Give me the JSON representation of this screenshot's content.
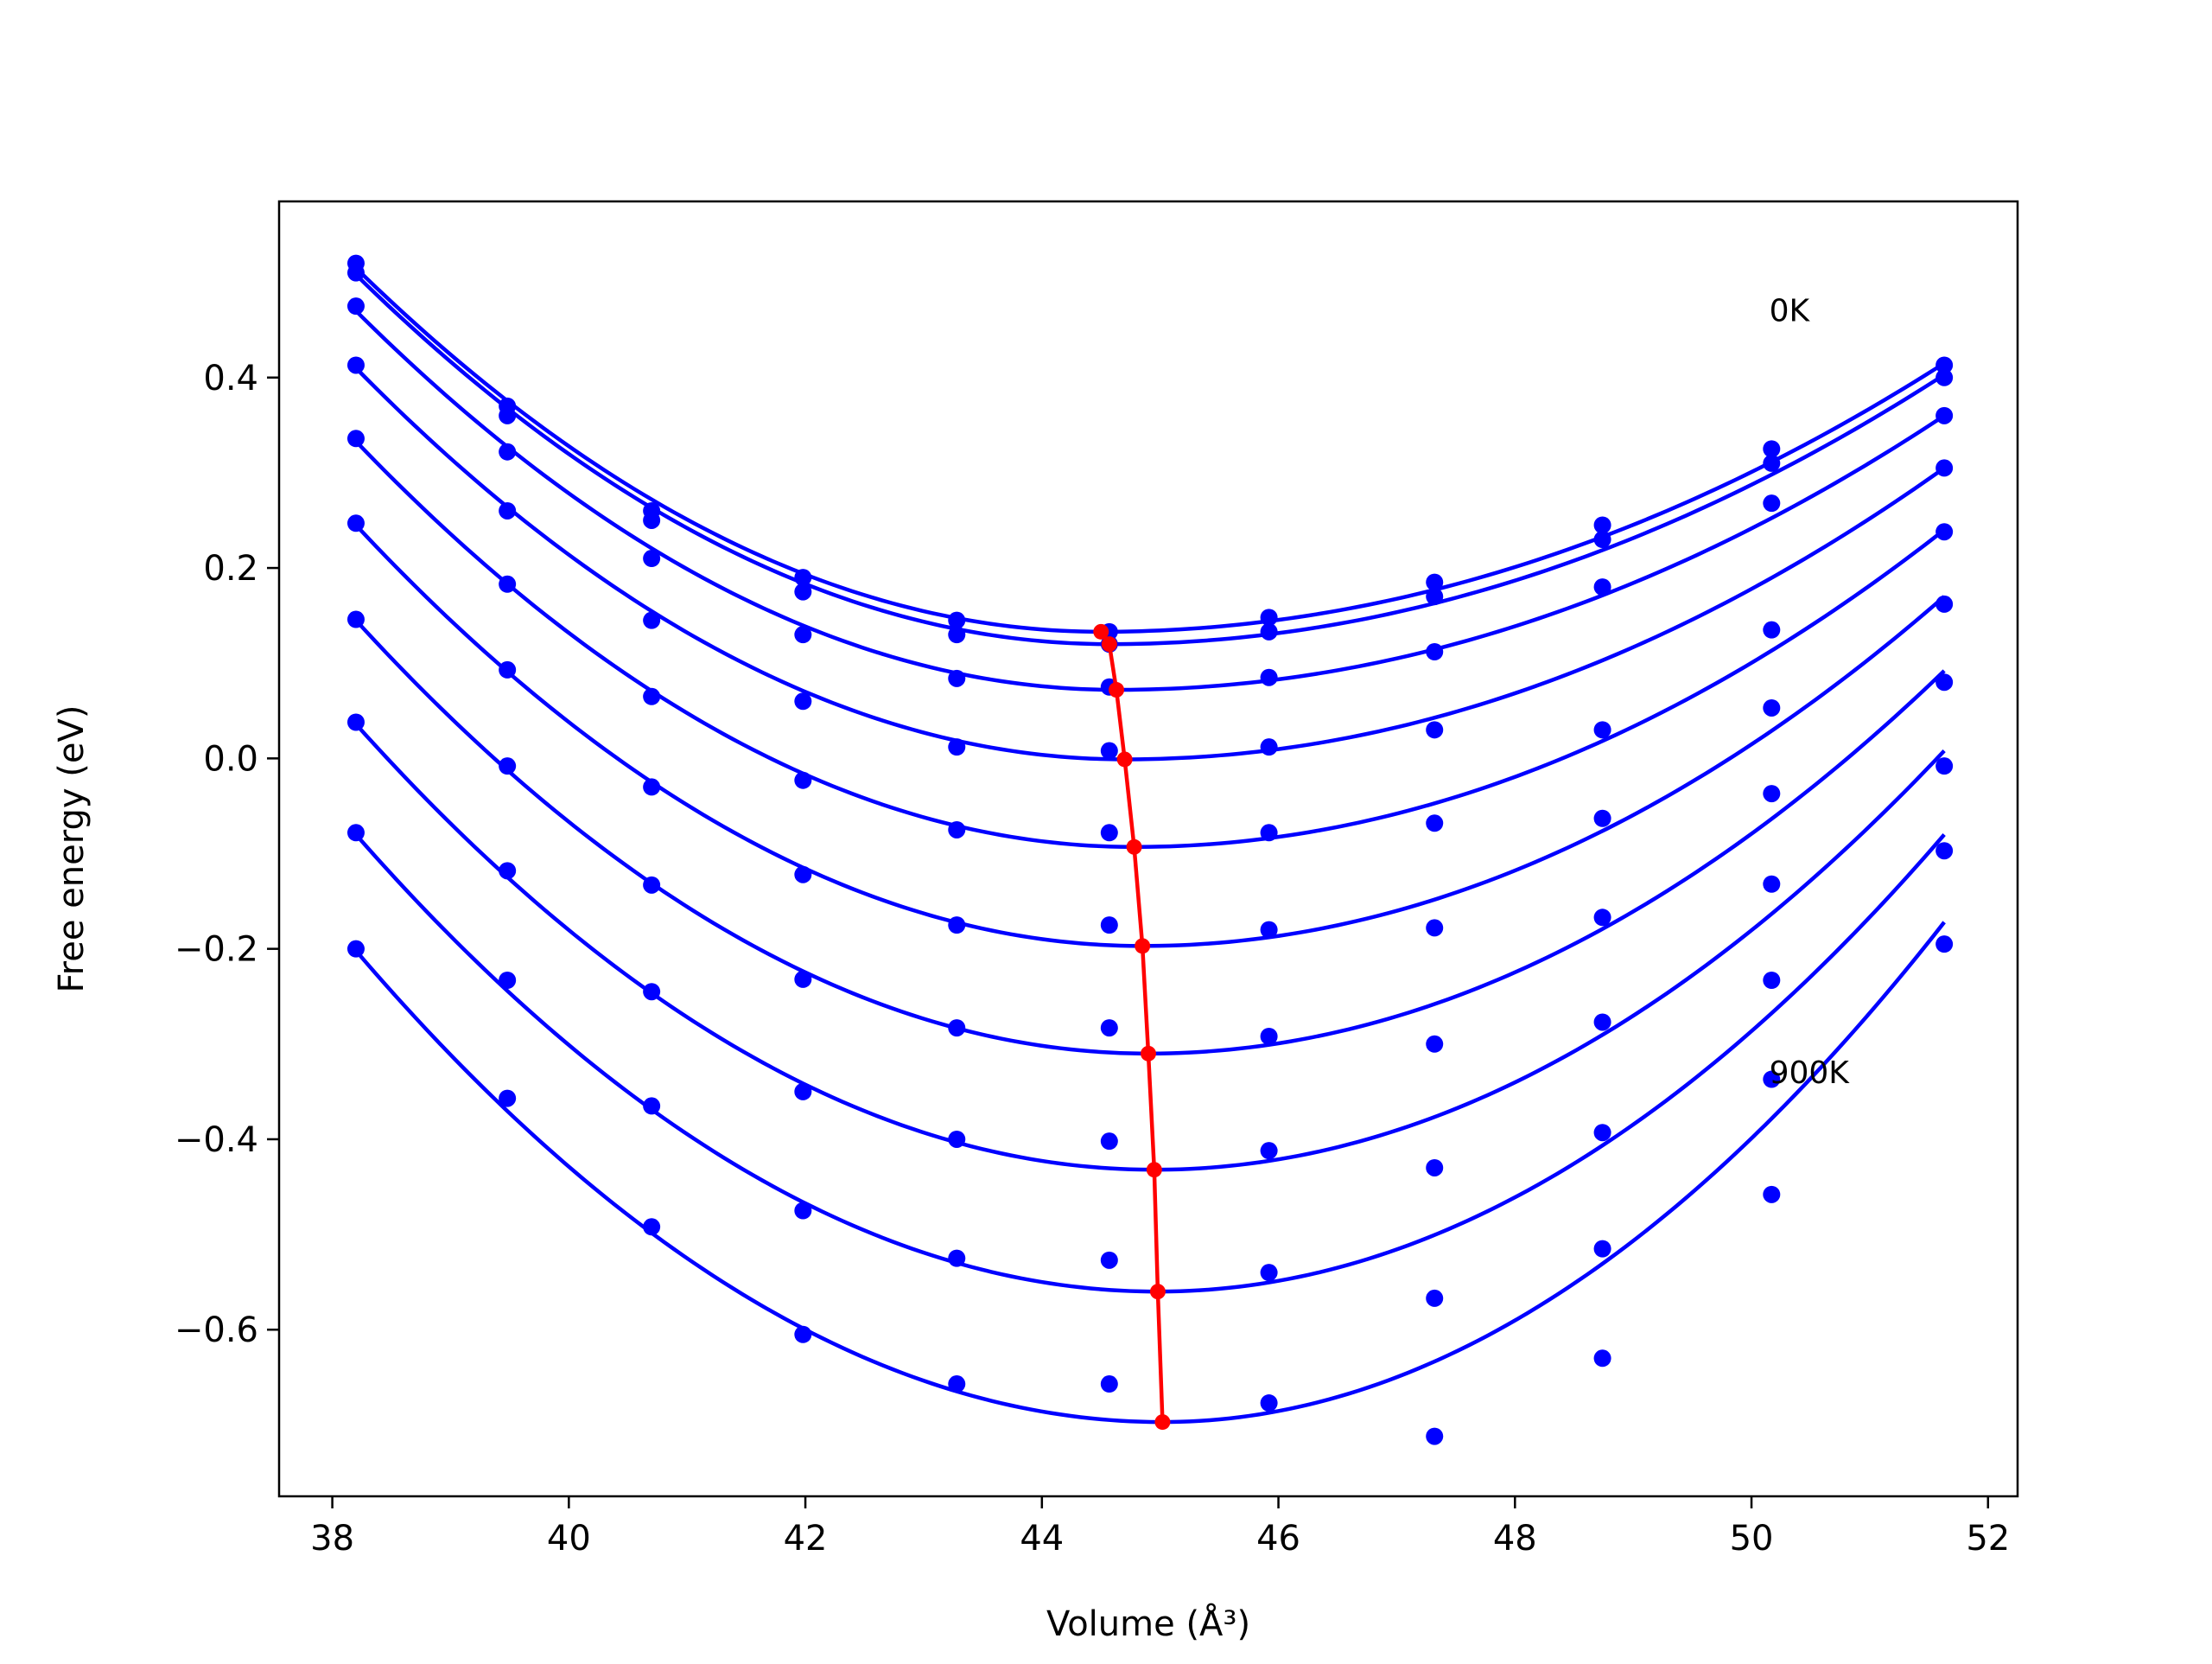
{
  "chart_data": {
    "type": "line",
    "title": "",
    "xlabel": "Volume (Å³)",
    "ylabel": "Free energy (eV)",
    "xlim": [
      37.55,
      52.25
    ],
    "ylim": [
      -0.775,
      0.585
    ],
    "grid": false,
    "legend": "none",
    "x_ticks": [
      38,
      40,
      42,
      44,
      46,
      48,
      50,
      52
    ],
    "x_tick_labels": [
      "38",
      "40",
      "42",
      "44",
      "46",
      "48",
      "50",
      "52"
    ],
    "y_ticks": [
      -0.6,
      -0.4,
      -0.2,
      0.0,
      0.2,
      0.4
    ],
    "y_tick_labels": [
      "−0.6",
      "−0.4",
      "−0.2",
      "0.0",
      "0.2",
      "0.4"
    ],
    "annotations": [
      {
        "text": "0K",
        "x": 50.15,
        "y": 0.47
      },
      {
        "text": "900K",
        "x": 50.15,
        "y": -0.33
      }
    ],
    "colors": {
      "fits": "#0000ff",
      "points": "#0000ff",
      "minimum_path": "#ff0000"
    },
    "volumes": [
      38.2,
      39.48,
      40.7,
      41.98,
      43.28,
      44.57,
      45.92,
      47.32,
      48.74,
      50.17,
      51.63
    ],
    "series": [
      {
        "values": [
          0.52,
          0.37,
          0.26,
          0.19,
          0.145,
          0.133,
          0.148,
          0.185,
          0.245,
          0.325,
          0.413
        ],
        "fit_minimum": [
          44.5,
          0.133
        ]
      },
      {
        "values": [
          0.51,
          0.36,
          0.25,
          0.175,
          0.13,
          0.12,
          0.133,
          0.17,
          0.23,
          0.31,
          0.4
        ],
        "fit_minimum": [
          44.57,
          0.12
        ]
      },
      {
        "values": [
          0.475,
          0.322,
          0.21,
          0.13,
          0.084,
          0.075,
          0.085,
          0.112,
          0.18,
          0.268,
          0.36
        ],
        "fit_minimum": [
          44.63,
          0.072
        ]
      },
      {
        "values": [
          0.413,
          0.26,
          0.145,
          0.06,
          0.012,
          0.008,
          0.012,
          0.03,
          0.03,
          0.135,
          0.305
        ],
        "fit_minimum": [
          44.7,
          -0.001
        ]
      },
      {
        "values": [
          0.336,
          0.183,
          0.065,
          -0.023,
          -0.075,
          -0.078,
          -0.078,
          -0.068,
          -0.063,
          0.053,
          0.238
        ],
        "fit_minimum": [
          44.78,
          -0.093
        ]
      },
      {
        "values": [
          0.247,
          0.093,
          -0.03,
          -0.122,
          -0.175,
          -0.175,
          -0.18,
          -0.178,
          -0.167,
          -0.037,
          0.162
        ],
        "fit_minimum": [
          44.85,
          -0.197
        ]
      },
      {
        "values": [
          0.146,
          -0.008,
          -0.133,
          -0.232,
          -0.283,
          -0.283,
          -0.292,
          -0.3,
          -0.277,
          -0.132,
          0.08
        ],
        "fit_minimum": [
          44.9,
          -0.31
        ]
      },
      {
        "values": [
          0.038,
          -0.118,
          -0.245,
          -0.35,
          -0.4,
          -0.402,
          -0.412,
          -0.43,
          -0.393,
          -0.233,
          -0.008
        ],
        "fit_minimum": [
          44.95,
          -0.432
        ]
      },
      {
        "values": [
          -0.078,
          -0.233,
          -0.365,
          -0.475,
          -0.525,
          -0.527,
          -0.54,
          -0.567,
          -0.515,
          -0.337,
          -0.097
        ],
        "fit_minimum": [
          44.98,
          -0.56
        ]
      },
      {
        "values": [
          -0.2,
          -0.357,
          -0.492,
          -0.605,
          -0.657,
          -0.657,
          -0.677,
          -0.712,
          -0.63,
          -0.458,
          -0.195
        ],
        "fit_minimum": [
          45.02,
          -0.697
        ]
      }
    ],
    "fit_curves": [
      {
        "vmin": 44.5,
        "fmin": 0.133,
        "start": 0.515,
        "end": 0.415
      },
      {
        "vmin": 44.57,
        "fmin": 0.12,
        "start": 0.508,
        "end": 0.403
      },
      {
        "vmin": 44.63,
        "fmin": 0.072,
        "start": 0.47,
        "end": 0.36
      },
      {
        "vmin": 44.7,
        "fmin": -0.001,
        "start": 0.41,
        "end": 0.305
      },
      {
        "vmin": 44.78,
        "fmin": -0.093,
        "start": 0.333,
        "end": 0.24
      },
      {
        "vmin": 44.85,
        "fmin": -0.197,
        "start": 0.245,
        "end": 0.17
      },
      {
        "vmin": 44.9,
        "fmin": -0.31,
        "start": 0.145,
        "end": 0.092
      },
      {
        "vmin": 44.95,
        "fmin": -0.432,
        "start": 0.036,
        "end": 0.008
      },
      {
        "vmin": 44.98,
        "fmin": -0.56,
        "start": -0.08,
        "end": -0.08
      },
      {
        "vmin": 45.02,
        "fmin": -0.697,
        "start": -0.202,
        "end": -0.172
      }
    ],
    "minimum_path": {
      "x": [
        44.5,
        44.57,
        44.63,
        44.7,
        44.78,
        44.85,
        44.9,
        44.95,
        44.98,
        45.02
      ],
      "y": [
        0.133,
        0.12,
        0.072,
        -0.001,
        -0.093,
        -0.197,
        -0.31,
        -0.432,
        -0.56,
        -0.697
      ]
    }
  }
}
